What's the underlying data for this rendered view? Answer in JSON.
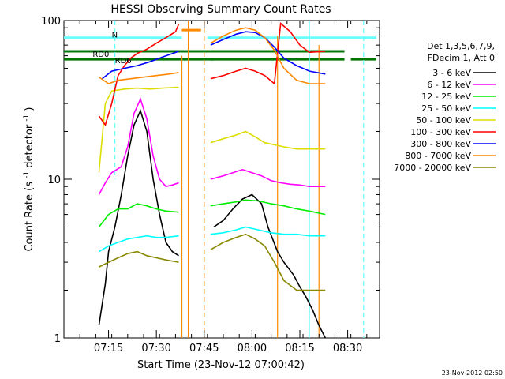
{
  "chart_data": {
    "type": "line",
    "title": "HESSI Observing Summary Count Rates",
    "xlabel": "Start Time (23-Nov-12 07:00:42)",
    "ylabel": "Count Rate (s⁻¹ detector⁻¹)",
    "ylabel_main": "Count Rate (s",
    "ylabel_sup1": "-1",
    "ylabel_mid": " detector",
    "ylabel_sup2": "-1",
    "ylabel_end": ")",
    "y_scale": "log",
    "ylim": [
      1,
      100
    ],
    "xlim": [
      "07:01",
      "08:40"
    ],
    "x_ticks": [
      "07:15",
      "07:30",
      "07:45",
      "08:00",
      "08:15",
      "08:30"
    ],
    "y_ticks": [
      "1",
      "10",
      "100"
    ],
    "grid": false,
    "legend_position": "right",
    "legend_header": [
      "Det 1,3,5,6,7,9,",
      "FDecim 1, Att 0"
    ],
    "footer_timestamp": "23-Nov-2012 02:50",
    "annotations": [
      {
        "text": "RD0",
        "x": "07:10",
        "y": 59
      },
      {
        "text": "RD6",
        "x": "07:17",
        "y": 54
      },
      {
        "text": "N",
        "x": "07:16",
        "y": 78
      }
    ],
    "bars": [
      {
        "label": "RD0",
        "color": "#007700",
        "y": 64,
        "segments": [
          [
            "07:01",
            "07:48"
          ],
          [
            "07:47",
            "08:29"
          ]
        ]
      },
      {
        "label": "RD6",
        "color": "#007700",
        "y": 57,
        "segments": [
          [
            "07:01",
            "07:48"
          ],
          [
            "07:47",
            "08:29"
          ],
          [
            "08:31",
            "08:39"
          ]
        ]
      },
      {
        "label": "N",
        "color": "#66ffff",
        "y": 78,
        "segments": [
          [
            "07:01",
            "07:38"
          ],
          [
            "07:46",
            "08:18"
          ],
          [
            "08:18",
            "08:39"
          ]
        ]
      },
      {
        "label": "orange-bar",
        "color": "#ff8800",
        "y": 87,
        "segments": [
          [
            "07:38",
            "07:44"
          ]
        ]
      }
    ],
    "vlines": [
      {
        "x": "07:17",
        "color": "#66ffff",
        "style": "dashed",
        "y_range": [
          10,
          100
        ]
      },
      {
        "x": "07:38",
        "color": "#66ffff",
        "style": "solid",
        "y_range": [
          1,
          60
        ]
      },
      {
        "x": "07:38",
        "color": "#ff8800",
        "style": "solid",
        "y_range": [
          1,
          60
        ]
      },
      {
        "x": "07:40",
        "color": "#ff8800",
        "style": "solid",
        "y_range": [
          1,
          100
        ]
      },
      {
        "x": "07:45",
        "color": "#ff8800",
        "style": "dashed",
        "y_range": [
          1,
          100
        ]
      },
      {
        "x": "08:08",
        "color": "#ff8800",
        "style": "solid",
        "y_range": [
          1,
          80
        ]
      },
      {
        "x": "08:18",
        "color": "#66ffff",
        "style": "solid",
        "y_range": [
          1,
          100
        ]
      },
      {
        "x": "08:21",
        "color": "#ff8800",
        "style": "solid",
        "y_range": [
          1,
          70
        ]
      },
      {
        "x": "08:35",
        "color": "#66ffff",
        "style": "dashed",
        "y_range": [
          1,
          100
        ]
      }
    ],
    "series": [
      {
        "name": "3 - 6 keV",
        "color": "#000000",
        "label": "3 - 6 keV",
        "x": [
          "07:12",
          "07:14",
          "07:15",
          "07:17",
          "07:19",
          "07:21",
          "07:23",
          "07:25",
          "07:27",
          "07:29",
          "07:31",
          "07:33",
          "07:35",
          "07:37",
          "07:48",
          "07:51",
          "07:54",
          "07:57",
          "08:00",
          "08:03",
          "08:05",
          "08:08",
          "08:10",
          "08:13",
          "08:15",
          "08:17",
          "08:19",
          "08:21",
          "08:23"
        ],
        "values": [
          1.2,
          2.2,
          3.5,
          5,
          8,
          14,
          22,
          27,
          20,
          10,
          6,
          4,
          3.5,
          3.3,
          5,
          5.5,
          6.5,
          7.5,
          8,
          7,
          5,
          3.5,
          3,
          2.5,
          2.1,
          1.8,
          1.5,
          1.2,
          1.0
        ]
      },
      {
        "name": "6 - 12 keV",
        "color": "#ff00ff",
        "label": "6 - 12 keV",
        "x": [
          "07:12",
          "07:14",
          "07:16",
          "07:19",
          "07:21",
          "07:23",
          "07:25",
          "07:27",
          "07:29",
          "07:31",
          "07:33",
          "07:35",
          "07:37",
          "07:47",
          "07:51",
          "07:54",
          "07:57",
          "08:00",
          "08:03",
          "08:06",
          "08:09",
          "08:12",
          "08:15",
          "08:18",
          "08:20",
          "08:23"
        ],
        "values": [
          8,
          9.5,
          11,
          12,
          16,
          26,
          32,
          24,
          14,
          10,
          9,
          9.2,
          9.5,
          10,
          10.5,
          11,
          11.5,
          11,
          10.5,
          9.8,
          9.5,
          9.3,
          9.2,
          9.0,
          9.0,
          9.0
        ]
      },
      {
        "name": "12 - 25 keV",
        "color": "#00ee00",
        "label": "12 - 25 keV",
        "x": [
          "07:12",
          "07:15",
          "07:18",
          "07:21",
          "07:24",
          "07:27",
          "07:30",
          "07:33",
          "07:37",
          "07:47",
          "07:51",
          "07:55",
          "07:58",
          "08:02",
          "08:06",
          "08:10",
          "08:14",
          "08:18",
          "08:23"
        ],
        "values": [
          5,
          6,
          6.5,
          6.5,
          7,
          6.8,
          6.5,
          6.3,
          6.2,
          6.8,
          7,
          7.2,
          7.4,
          7.3,
          7,
          6.8,
          6.5,
          6.3,
          6.0
        ]
      },
      {
        "name": "25 - 50 keV",
        "color": "#00ffff",
        "label": "25 - 50 keV",
        "x": [
          "07:12",
          "07:15",
          "07:18",
          "07:21",
          "07:24",
          "07:27",
          "07:30",
          "07:33",
          "07:37",
          "07:47",
          "07:51",
          "07:55",
          "07:58",
          "08:02",
          "08:06",
          "08:10",
          "08:14",
          "08:18",
          "08:23"
        ],
        "values": [
          3.5,
          3.8,
          4,
          4.2,
          4.3,
          4.4,
          4.3,
          4.3,
          4.4,
          4.5,
          4.6,
          4.8,
          5,
          4.8,
          4.6,
          4.5,
          4.5,
          4.4,
          4.4
        ]
      },
      {
        "name": "50 - 100 keV",
        "color": "#dddd00",
        "label": "50 - 100 keV",
        "x": [
          "07:12",
          "07:14",
          "07:16",
          "07:20",
          "07:24",
          "07:28",
          "07:32",
          "07:37",
          "07:47",
          "07:51",
          "07:55",
          "07:58",
          "08:01",
          "08:04",
          "08:07",
          "08:10",
          "08:14",
          "08:18",
          "08:23"
        ],
        "values": [
          11,
          30,
          36,
          37,
          37.5,
          37,
          37.5,
          38,
          17,
          18,
          19,
          20,
          18.5,
          17,
          16.5,
          16,
          15.5,
          15.5,
          15.5
        ]
      },
      {
        "name": "100 - 300 keV",
        "color": "#ff0000",
        "label": "100 - 300 keV",
        "x": [
          "07:12",
          "07:14",
          "07:16",
          "07:18",
          "07:20",
          "07:22",
          "07:24",
          "07:27",
          "07:30",
          "07:33",
          "07:36",
          "07:37",
          "07:47",
          "07:51",
          "07:55",
          "07:58",
          "08:01",
          "08:04",
          "08:07",
          "08:09",
          "08:12",
          "08:15",
          "08:18",
          "08:23"
        ],
        "values": [
          25,
          22,
          30,
          45,
          52,
          58,
          62,
          66,
          72,
          78,
          85,
          95,
          43,
          45,
          48,
          50,
          48,
          45,
          40,
          96,
          85,
          70,
          63,
          64
        ]
      },
      {
        "name": "300 - 800 keV",
        "color": "#0000ff",
        "label": "300 - 800 keV",
        "x": [
          "07:13",
          "07:16",
          "07:20",
          "07:24",
          "07:28",
          "07:32",
          "07:37",
          "07:47",
          "07:51",
          "07:55",
          "07:58",
          "08:01",
          "08:04",
          "08:07",
          "08:10",
          "08:14",
          "08:18",
          "08:23"
        ],
        "values": [
          43,
          48,
          50,
          52,
          55,
          59,
          64,
          70,
          76,
          82,
          85,
          84,
          78,
          68,
          58,
          52,
          48,
          46
        ]
      },
      {
        "name": "800 - 7000 keV",
        "color": "#ff8800",
        "label": "800 - 7000 keV",
        "x": [
          "07:12",
          "07:15",
          "07:18",
          "07:22",
          "07:26",
          "07:30",
          "07:34",
          "07:37",
          "07:47",
          "07:51",
          "07:55",
          "07:58",
          "08:01",
          "08:04",
          "08:07",
          "08:10",
          "08:14",
          "08:18",
          "08:23"
        ],
        "values": [
          44,
          40,
          42,
          43,
          44,
          45,
          46,
          47,
          72,
          80,
          87,
          90,
          87,
          78,
          65,
          50,
          42,
          40,
          40
        ]
      },
      {
        "name": "7000 - 20000 keV",
        "color": "#888800",
        "label": "7000 - 20000 keV",
        "x": [
          "07:12",
          "07:15",
          "07:18",
          "07:21",
          "07:24",
          "07:27",
          "07:30",
          "07:33",
          "07:37",
          "07:47",
          "07:51",
          "07:55",
          "07:58",
          "08:01",
          "08:04",
          "08:07",
          "08:10",
          "08:14",
          "08:18",
          "08:23"
        ],
        "values": [
          2.8,
          3,
          3.2,
          3.4,
          3.5,
          3.3,
          3.2,
          3.1,
          3.0,
          3.6,
          4.0,
          4.3,
          4.5,
          4.2,
          3.8,
          3.0,
          2.3,
          2.0,
          2.0,
          2.0
        ]
      }
    ],
    "colors": {
      "axis": "#000000",
      "background": "#ffffff",
      "rd_bar": "#007700",
      "n_bar": "#66ffff",
      "orange_bar": "#ff8800"
    }
  }
}
